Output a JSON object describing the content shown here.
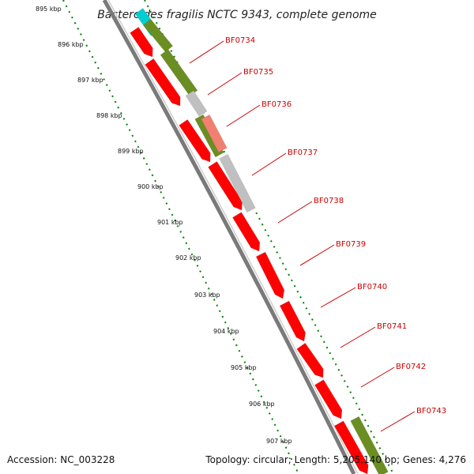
{
  "title": "Bacteroides fragilis NCTC 9343, complete genome",
  "footer": {
    "accession": "Accession: NC_003228",
    "stats": "Topology: circular; Length: 5,205,140 bp; Genes: 4,276"
  },
  "colors": {
    "cds_red": "#ff0000",
    "cds_olive": "#6b8e23",
    "cds_gray": "#c0c0c0",
    "cds_salmon": "#f08070",
    "cds_cyan": "#00ced1",
    "backbone": "#808080",
    "tick_green": "#008000",
    "label_red": "#cc0000"
  },
  "kbp_ticks": [
    "895 kbp",
    "896 kbp",
    "897 kbp",
    "898 kbp",
    "899 kbp",
    "900 kbp",
    "901 kbp",
    "902 kbp",
    "903 kbp",
    "904 kbp",
    "905 kbp",
    "906 kbp",
    "907 kbp"
  ],
  "gene_labels": [
    "BF0734",
    "BF0735",
    "BF0736",
    "BF0737",
    "BF0738",
    "BF0739",
    "BF0740",
    "BF0741",
    "BF0742",
    "BF0743"
  ]
}
